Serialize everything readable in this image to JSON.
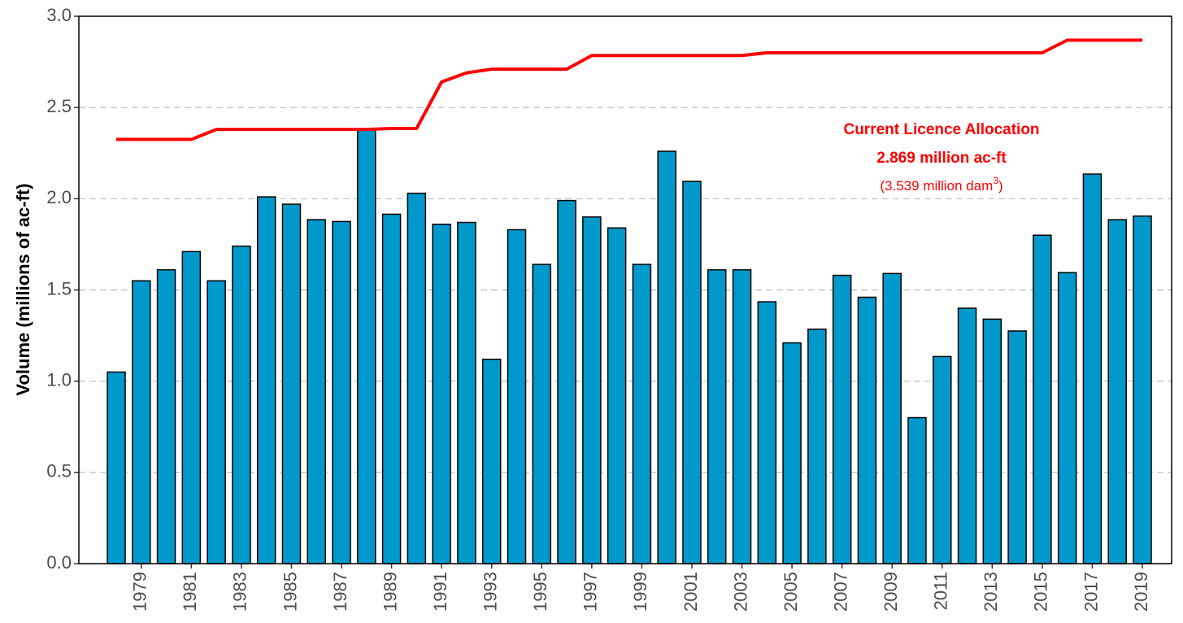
{
  "chart_data": {
    "type": "bar",
    "ylabel": "Volume (millions of ac-ft)",
    "categories": [
      null,
      "1979",
      null,
      "1981",
      null,
      "1983",
      null,
      "1985",
      null,
      "1987",
      null,
      "1989",
      null,
      "1991",
      null,
      "1993",
      null,
      "1995",
      null,
      "1997",
      null,
      "1999",
      null,
      "2001",
      null,
      "2003",
      null,
      "2005",
      null,
      "2007",
      null,
      "2009",
      null,
      "2011",
      null,
      "2013",
      null,
      "2015",
      null,
      "2017",
      null,
      "2019"
    ],
    "series": [
      {
        "type": "bar",
        "color": "#0099cc",
        "values": [
          1.05,
          1.55,
          1.61,
          1.71,
          1.55,
          1.74,
          2.01,
          1.97,
          1.885,
          1.875,
          2.375,
          1.915,
          2.03,
          1.86,
          1.87,
          1.12,
          1.83,
          1.64,
          1.99,
          1.9,
          1.84,
          1.64,
          2.26,
          2.095,
          1.61,
          1.61,
          1.435,
          1.21,
          1.285,
          1.58,
          1.46,
          1.59,
          0.8,
          1.135,
          1.4,
          1.34,
          1.275,
          1.8,
          1.595,
          2.135,
          1.885,
          1.905
        ]
      },
      {
        "type": "line",
        "color": "#ff0000",
        "values": [
          2.325,
          2.325,
          2.325,
          2.325,
          2.38,
          2.38,
          2.38,
          2.38,
          2.38,
          2.38,
          2.38,
          2.385,
          2.385,
          2.64,
          2.69,
          2.71,
          2.71,
          2.71,
          2.71,
          2.785,
          2.785,
          2.785,
          2.785,
          2.785,
          2.785,
          2.785,
          2.8,
          2.8,
          2.8,
          2.8,
          2.8,
          2.8,
          2.8,
          2.8,
          2.8,
          2.8,
          2.8,
          2.8,
          2.869,
          2.869,
          2.869,
          2.869
        ]
      }
    ],
    "annotation": {
      "line1": "Current Licence Allocation",
      "line2": "2.869 million ac-ft",
      "line3": [
        "(3.539 million dam",
        "3",
        ")"
      ],
      "color": "#ff0000"
    },
    "ylim": [
      0,
      3
    ],
    "yticks": [
      {
        "value": 0,
        "label": "0.0"
      },
      0.5,
      {
        "value": 1,
        "label": "1.0"
      },
      1.5,
      {
        "value": 2,
        "label": "2.0"
      },
      2.5,
      {
        "value": 3,
        "label": "3.0"
      }
    ],
    "grid": true
  }
}
